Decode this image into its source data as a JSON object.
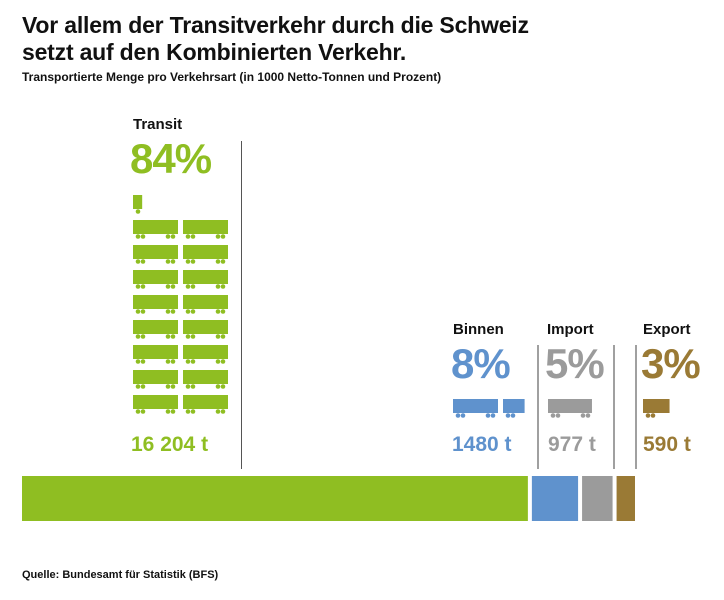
{
  "header": {
    "title_line1": "Vor allem der Transitverkehr durch die Schweiz",
    "title_line2": "setzt auf den Kombinierten Verkehr.",
    "subtitle": "Transportierte Menge pro Verkehrsart (in 1000 Netto-Tonnen und Prozent)"
  },
  "source": "Quelle: Bundesamt für Statistik (BFS)",
  "colors": {
    "transit": "#8fbe22",
    "binnen": "#5f92cd",
    "import": "#9b9b9b",
    "export": "#9a7a35",
    "divider_dark": "#555555",
    "divider_light": "#a0a0a0"
  },
  "chart_data": {
    "type": "bar",
    "subtype": "stacked-horizontal-with-pictogram",
    "title": "Vor allem der Transitverkehr durch die Schweiz setzt auf den Kombinierten Verkehr.",
    "subtitle": "Transportierte Menge pro Verkehrsart (in 1000 Netto-Tonnen und Prozent)",
    "unit": "1000 Netto-Tonnen",
    "pictogram_unit_tonnes": 1000,
    "categories": [
      "Transit",
      "Binnen",
      "Import",
      "Export"
    ],
    "values": [
      16204,
      1480,
      977,
      590
    ],
    "percent_labels": [
      "84%",
      "8%",
      "5%",
      "3%"
    ],
    "value_labels": [
      "16 204 t",
      "1480 t",
      "977 t",
      "590 t"
    ],
    "percents": [
      84,
      8,
      5,
      3
    ],
    "legend": "none",
    "source": "Quelle: Bundesamt für Statistik (BFS)"
  }
}
